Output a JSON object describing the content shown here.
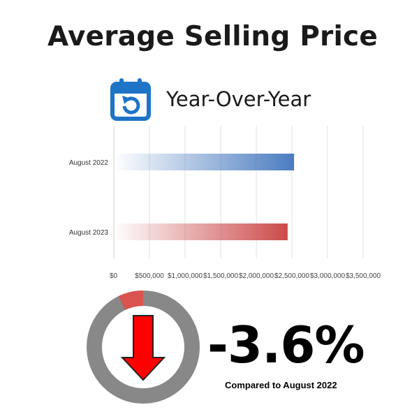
{
  "page": {
    "title": "Average Selling Price",
    "subtitle": "Year-Over-Year",
    "change_pct": "-3.6%",
    "caption": "Compared to August 2022",
    "change_fraction": 0.036
  },
  "icons": {
    "calendar": "calendar-refresh-icon",
    "arrow": "arrow-down-icon"
  },
  "colors": {
    "bar_2022": "#4a7cc0",
    "bar_2023": "#cc4a4a",
    "donut_ring": "#888888",
    "donut_change": "#d9534f",
    "arrow": "#ff0000",
    "icon": "#1e74c6"
  },
  "chart_data": {
    "type": "bar",
    "orientation": "horizontal",
    "categories": [
      "August 2022",
      "August 2023"
    ],
    "values": [
      2530000,
      2440000
    ],
    "xlim": [
      0,
      3500000
    ],
    "xticks": [
      "$0",
      "$500,000",
      "$1,000,000",
      "$1,500,000",
      "$2,000,000",
      "$2,500,000",
      "$3,000,000",
      "$3,500,000"
    ],
    "grid": true,
    "legend": "none"
  }
}
